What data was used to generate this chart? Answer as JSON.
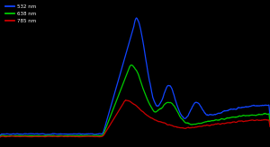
{
  "background_color": "#000000",
  "line_colors": [
    "#1144ff",
    "#00cc00",
    "#cc0000"
  ],
  "line_labels": [
    "532 nm",
    "638 nm",
    "785 nm"
  ],
  "figsize": [
    3.0,
    1.64
  ],
  "dpi": 100
}
